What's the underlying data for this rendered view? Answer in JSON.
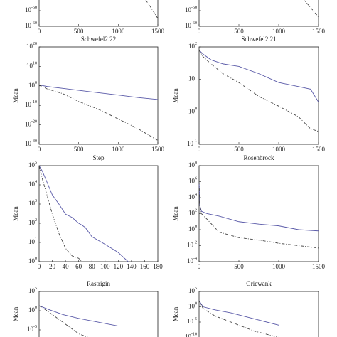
{
  "chart_data": [
    {
      "type": "line",
      "log_y": true,
      "xlim": [
        0,
        1500
      ],
      "xticks": [
        0,
        500,
        1000,
        1500
      ],
      "ylim": [
        1e-60,
        1
      ],
      "yticks": [
        {
          "value": 1e-60,
          "label": "10^-60"
        },
        {
          "value": 1e-50,
          "label": "10^-50"
        }
      ],
      "x": [
        1300,
        1400,
        1500
      ],
      "series": [
        {
          "color": "#444444",
          "style": "dashed",
          "values": [
            1e-40,
            1e-47,
            1e-55
          ]
        }
      ]
    },
    {
      "type": "line",
      "log_y": true,
      "xlim": [
        0,
        1500
      ],
      "xticks": [
        0,
        500,
        1000,
        1500
      ],
      "ylim": [
        1e-60,
        1
      ],
      "yticks": [
        {
          "value": 1e-60,
          "label": "10^-60"
        },
        {
          "value": 1e-50,
          "label": "10^-50"
        }
      ],
      "x": [
        1300,
        1400,
        1500
      ],
      "series": [
        {
          "color": "#444444",
          "style": "dashed",
          "values": [
            1e-42,
            1e-48,
            1e-54
          ]
        }
      ]
    },
    {
      "type": "line",
      "title": "Schwefel2.22",
      "ylabel": "Mean",
      "log_y": true,
      "xlim": [
        0,
        1500
      ],
      "xticks": [
        0,
        500,
        1000,
        1500
      ],
      "ylim": [
        1e-30,
        1e+20
      ],
      "yticks": [
        {
          "value": 1e-30,
          "label": "10^-30"
        },
        {
          "value": 1e-20,
          "label": "10^-20"
        },
        {
          "value": 1e-10,
          "label": "10^-10"
        },
        {
          "value": 1,
          "label": "10^0"
        },
        {
          "value": 10000000000.0,
          "label": "10^10"
        },
        {
          "value": 1e+20,
          "label": "10^20"
        }
      ],
      "x": [
        0,
        100,
        300,
        500,
        750,
        1000,
        1250,
        1500
      ],
      "series": [
        {
          "color": "#5a5aa8",
          "style": "solid",
          "values": [
            3,
            0.5,
            0.05,
            0.005,
            0.0003,
            2e-05,
            1e-06,
            1e-07
          ]
        },
        {
          "color": "#444444",
          "style": "dashed",
          "values": [
            3,
            0.03,
            0.0001,
            1e-08,
            1e-12,
            1e-17,
            1e-22,
            1e-28
          ]
        }
      ]
    },
    {
      "type": "line",
      "title": "Schwefel2.21",
      "ylabel": "Mean",
      "log_y": true,
      "xlim": [
        0,
        1500
      ],
      "xticks": [
        0,
        500,
        1000,
        1500
      ],
      "ylim": [
        0.1,
        100
      ],
      "yticks": [
        {
          "value": 0.1,
          "label": "10^-1"
        },
        {
          "value": 1,
          "label": "10^0"
        },
        {
          "value": 10,
          "label": "10^1"
        },
        {
          "value": 100,
          "label": "10^2"
        }
      ],
      "x": [
        0,
        50,
        150,
        300,
        500,
        750,
        1000,
        1250,
        1400,
        1500
      ],
      "series": [
        {
          "color": "#5a5aa8",
          "style": "solid",
          "values": [
            80,
            60,
            40,
            30,
            25,
            15,
            8,
            6,
            5,
            2
          ]
        },
        {
          "color": "#444444",
          "style": "dashed",
          "values": [
            80,
            50,
            30,
            15,
            8,
            3,
            1.5,
            0.7,
            0.3,
            0.25
          ]
        }
      ]
    },
    {
      "type": "line",
      "title": "Step",
      "ylabel": "Mean",
      "log_y": true,
      "xlim": [
        0,
        180
      ],
      "xticks": [
        0,
        20,
        40,
        60,
        80,
        100,
        120,
        140,
        160,
        180
      ],
      "ylim": [
        1,
        100000
      ],
      "yticks": [
        {
          "value": 1,
          "label": "10^0"
        },
        {
          "value": 10,
          "label": "10^1"
        },
        {
          "value": 100,
          "label": "10^2"
        },
        {
          "value": 1000,
          "label": "10^3"
        },
        {
          "value": 10000,
          "label": "10^4"
        },
        {
          "value": 100000,
          "label": "10^5"
        }
      ],
      "x": [
        0,
        5,
        10,
        20,
        30,
        40,
        50,
        60,
        65,
        70,
        80,
        100,
        120,
        135
      ],
      "series": [
        {
          "color": "#5a5aa8",
          "style": "solid",
          "values": [
            100000,
            50000,
            20000,
            3000,
            1000,
            300,
            200,
            100,
            80,
            60,
            20,
            8,
            3,
            1
          ]
        },
        {
          "color": "#444444",
          "style": "dashed",
          "values": [
            100000,
            20000,
            5000,
            300,
            30,
            5,
            2,
            1.5,
            1,
            null,
            null,
            null,
            null,
            null
          ]
        }
      ]
    },
    {
      "type": "line",
      "title": "Rosenbrock",
      "ylabel": "Mean",
      "log_y": true,
      "xlim": [
        0,
        1500
      ],
      "xticks": [
        0,
        500,
        1000,
        1500
      ],
      "ylim": [
        0.0001,
        100000000
      ],
      "yticks": [
        {
          "value": 0.0001,
          "label": "10^-4"
        },
        {
          "value": 0.01,
          "label": "10^-2"
        },
        {
          "value": 1,
          "label": "10^0"
        },
        {
          "value": 100,
          "label": "10^2"
        },
        {
          "value": 10000,
          "label": "10^4"
        },
        {
          "value": 1000000,
          "label": "10^6"
        },
        {
          "value": 100000000,
          "label": "10^8"
        }
      ],
      "x": [
        0,
        10,
        30,
        100,
        250,
        500,
        750,
        1000,
        1250,
        1500
      ],
      "series": [
        {
          "color": "#5a5aa8",
          "style": "solid",
          "values": [
            1000000,
            1000,
            200,
            100,
            50,
            10,
            5,
            3,
            1,
            0.7
          ]
        },
        {
          "color": "#444444",
          "style": "dashed",
          "values": [
            1000000,
            1000,
            100,
            20,
            0.5,
            0.1,
            0.05,
            0.02,
            0.01,
            0.005
          ]
        }
      ]
    },
    {
      "type": "line",
      "title": "Rastrigin",
      "ylabel": "Mean",
      "log_y": true,
      "xlim": [
        0,
        1500
      ],
      "ylim": [
        1e-10,
        100000
      ],
      "yticks": [
        {
          "value": 1e-05,
          "label": "10^-5"
        },
        {
          "value": 1,
          "label": "10^0"
        },
        {
          "value": 100000,
          "label": "10^5"
        }
      ],
      "x": [
        0,
        100,
        300,
        500,
        750,
        1000
      ],
      "series": [
        {
          "color": "#5a5aa8",
          "style": "solid",
          "values": [
            20,
            3,
            0.1,
            0.01,
            0.001,
            0.0001
          ]
        },
        {
          "color": "#444444",
          "style": "dashed",
          "values": [
            20,
            1,
            0.001,
            1e-06,
            1e-08,
            1e-10
          ]
        }
      ]
    },
    {
      "type": "line",
      "title": "Griewank",
      "ylabel": "Mean",
      "log_y": true,
      "xlim": [
        0,
        1500
      ],
      "ylim": [
        1e-15,
        100000
      ],
      "yticks": [
        {
          "value": 1e-10,
          "label": "10^-10"
        },
        {
          "value": 1e-05,
          "label": "10^-5"
        },
        {
          "value": 1,
          "label": "10^0"
        },
        {
          "value": 100000,
          "label": "10^5"
        }
      ],
      "x": [
        0,
        50,
        200,
        400,
        700,
        1000
      ],
      "series": [
        {
          "color": "#5a5aa8",
          "style": "solid",
          "values": [
            100,
            1,
            0.1,
            0.01,
            0.0001,
            1e-06
          ]
        },
        {
          "color": "#444444",
          "style": "dashed",
          "values": [
            100,
            0.3,
            0.001,
            1e-05,
            1e-08,
            1e-10
          ]
        }
      ]
    }
  ]
}
